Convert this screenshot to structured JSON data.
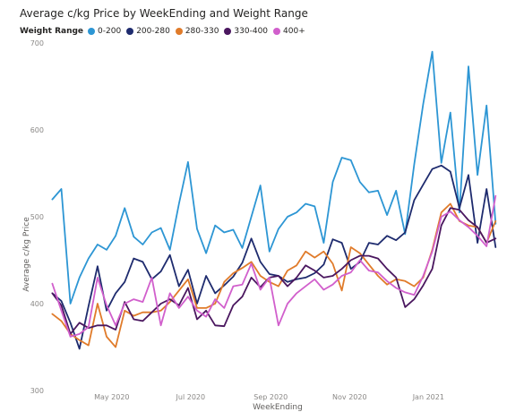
{
  "chart_data": {
    "type": "line",
    "title": "Average c/kg Price by WeekEnding and Weight Range",
    "xlabel": "WeekEnding",
    "ylabel": "Average c/kg Price",
    "ylim": [
      300,
      700
    ],
    "yticks": [
      300,
      400,
      500,
      600,
      700
    ],
    "xlim": [
      "2020-03-15",
      "2021-02-28"
    ],
    "xticks": [
      {
        "label": "May 2020",
        "date": "2020-05-01"
      },
      {
        "label": "Jul 2020",
        "date": "2020-07-01"
      },
      {
        "label": "Sep 2020",
        "date": "2020-09-01"
      },
      {
        "label": "Nov 2020",
        "date": "2020-11-01"
      },
      {
        "label": "Jan 2021",
        "date": "2021-01-01"
      }
    ],
    "grid": false,
    "legend": {
      "title": "Weight Range",
      "position": "top-left"
    },
    "x": [
      "2020-03-16",
      "2020-03-23",
      "2020-03-30",
      "2020-04-06",
      "2020-04-13",
      "2020-04-20",
      "2020-04-27",
      "2020-05-04",
      "2020-05-11",
      "2020-05-18",
      "2020-05-25",
      "2020-06-01",
      "2020-06-08",
      "2020-06-15",
      "2020-06-22",
      "2020-06-29",
      "2020-07-06",
      "2020-07-13",
      "2020-07-20",
      "2020-07-27",
      "2020-08-03",
      "2020-08-10",
      "2020-08-17",
      "2020-08-24",
      "2020-08-31",
      "2020-09-07",
      "2020-09-14",
      "2020-09-21",
      "2020-09-28",
      "2020-10-05",
      "2020-10-12",
      "2020-10-19",
      "2020-10-26",
      "2020-11-02",
      "2020-11-09",
      "2020-11-16",
      "2020-11-23",
      "2020-11-30",
      "2020-12-07",
      "2020-12-14",
      "2020-12-21",
      "2020-12-28",
      "2021-01-04",
      "2021-01-11",
      "2021-01-18",
      "2021-01-25",
      "2021-02-01",
      "2021-02-08",
      "2021-02-15",
      "2021-02-22"
    ],
    "series": [
      {
        "name": "0-200",
        "color": "#2d96d4",
        "values": [
          520,
          532,
          400,
          430,
          452,
          468,
          462,
          478,
          510,
          477,
          468,
          482,
          487,
          462,
          515,
          563,
          486,
          458,
          490,
          482,
          485,
          464,
          500,
          536,
          460,
          486,
          500,
          505,
          515,
          512,
          470,
          540,
          568,
          565,
          540,
          528,
          530,
          502,
          530,
          480,
          560,
          630,
          690,
          562,
          620,
          505,
          673,
          548,
          628,
          492
        ]
      },
      {
        "name": "200-280",
        "color": "#1e2b6e",
        "values": [
          412,
          403,
          378,
          348,
          397,
          443,
          392,
          412,
          425,
          452,
          448,
          428,
          437,
          456,
          420,
          439,
          400,
          432,
          412,
          421,
          431,
          447,
          475,
          448,
          434,
          432,
          425,
          428,
          430,
          435,
          445,
          474,
          470,
          440,
          448,
          470,
          468,
          478,
          473,
          482,
          519,
          537,
          555,
          559,
          552,
          510,
          548,
          470,
          532,
          465
        ]
      },
      {
        "name": "280-330",
        "color": "#e07b2a",
        "values": [
          388,
          380,
          365,
          358,
          352,
          400,
          362,
          350,
          392,
          386,
          390,
          390,
          392,
          402,
          415,
          428,
          395,
          395,
          400,
          425,
          435,
          441,
          448,
          432,
          425,
          420,
          438,
          444,
          460,
          453,
          460,
          446,
          415,
          465,
          458,
          445,
          432,
          422,
          428,
          426,
          420,
          430,
          462,
          505,
          515,
          495,
          490,
          488,
          470,
          495
        ]
      },
      {
        "name": "330-400",
        "color": "#4a175f",
        "values": [
          412,
          398,
          365,
          378,
          372,
          375,
          375,
          370,
          402,
          382,
          380,
          390,
          400,
          405,
          398,
          418,
          382,
          392,
          375,
          374,
          398,
          408,
          430,
          419,
          430,
          432,
          420,
          430,
          444,
          438,
          430,
          432,
          440,
          450,
          455,
          455,
          452,
          440,
          430,
          396,
          405,
          421,
          440,
          490,
          510,
          508,
          496,
          488,
          470,
          475
        ]
      },
      {
        "name": "400+",
        "color": "#d15fcc",
        "values": [
          423,
          392,
          362,
          365,
          373,
          430,
          398,
          375,
          400,
          405,
          402,
          430,
          375,
          412,
          395,
          408,
          392,
          385,
          405,
          395,
          420,
          422,
          446,
          416,
          430,
          375,
          400,
          412,
          420,
          428,
          416,
          422,
          432,
          436,
          450,
          438,
          436,
          426,
          418,
          413,
          410,
          432,
          460,
          500,
          506,
          496,
          488,
          478,
          466,
          524
        ]
      }
    ]
  }
}
